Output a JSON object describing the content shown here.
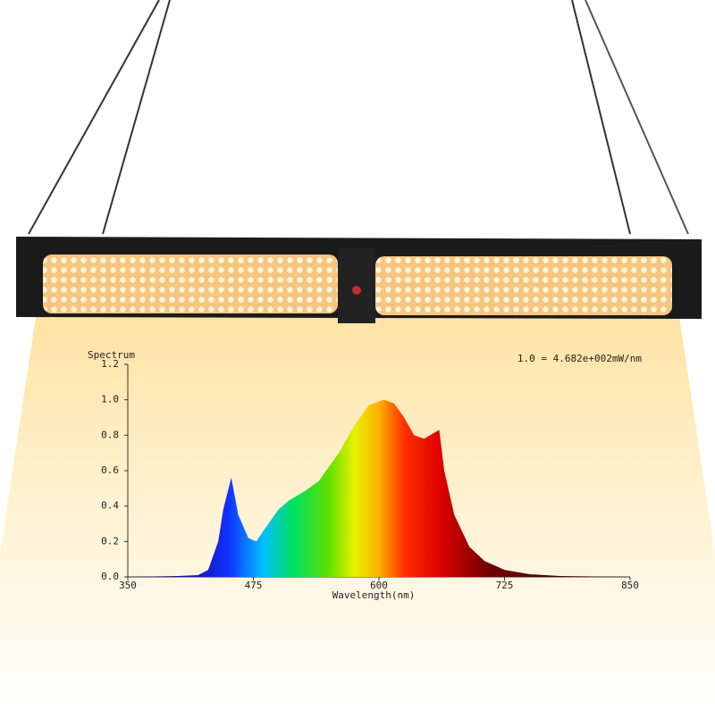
{
  "chart_data": {
    "type": "area",
    "y_axis_title": "Spectrum",
    "x_axis_title": "Wavelength(nm)",
    "annotation": "1.0 = 4.682e+002mW/nm",
    "x": [
      350,
      400,
      420,
      430,
      440,
      445,
      453,
      460,
      470,
      478,
      485,
      500,
      510,
      525,
      540,
      560,
      575,
      590,
      605,
      615,
      625,
      635,
      645,
      660,
      665,
      675,
      690,
      705,
      725,
      750,
      780,
      850
    ],
    "values": [
      0,
      0.005,
      0.01,
      0.04,
      0.2,
      0.38,
      0.56,
      0.35,
      0.22,
      0.2,
      0.26,
      0.38,
      0.43,
      0.48,
      0.54,
      0.7,
      0.85,
      0.97,
      1.0,
      0.98,
      0.9,
      0.8,
      0.78,
      0.83,
      0.6,
      0.35,
      0.17,
      0.09,
      0.04,
      0.015,
      0.005,
      0
    ],
    "xlim": [
      350,
      850
    ],
    "xticks": [
      350,
      475,
      600,
      725,
      850
    ],
    "ylim": [
      0,
      1.2
    ],
    "yticks": [
      {
        "value": 0,
        "label": "0.0"
      },
      0.2,
      0.4,
      0.6,
      0.8,
      {
        "value": 1,
        "label": "1.0"
      },
      1.2
    ]
  }
}
